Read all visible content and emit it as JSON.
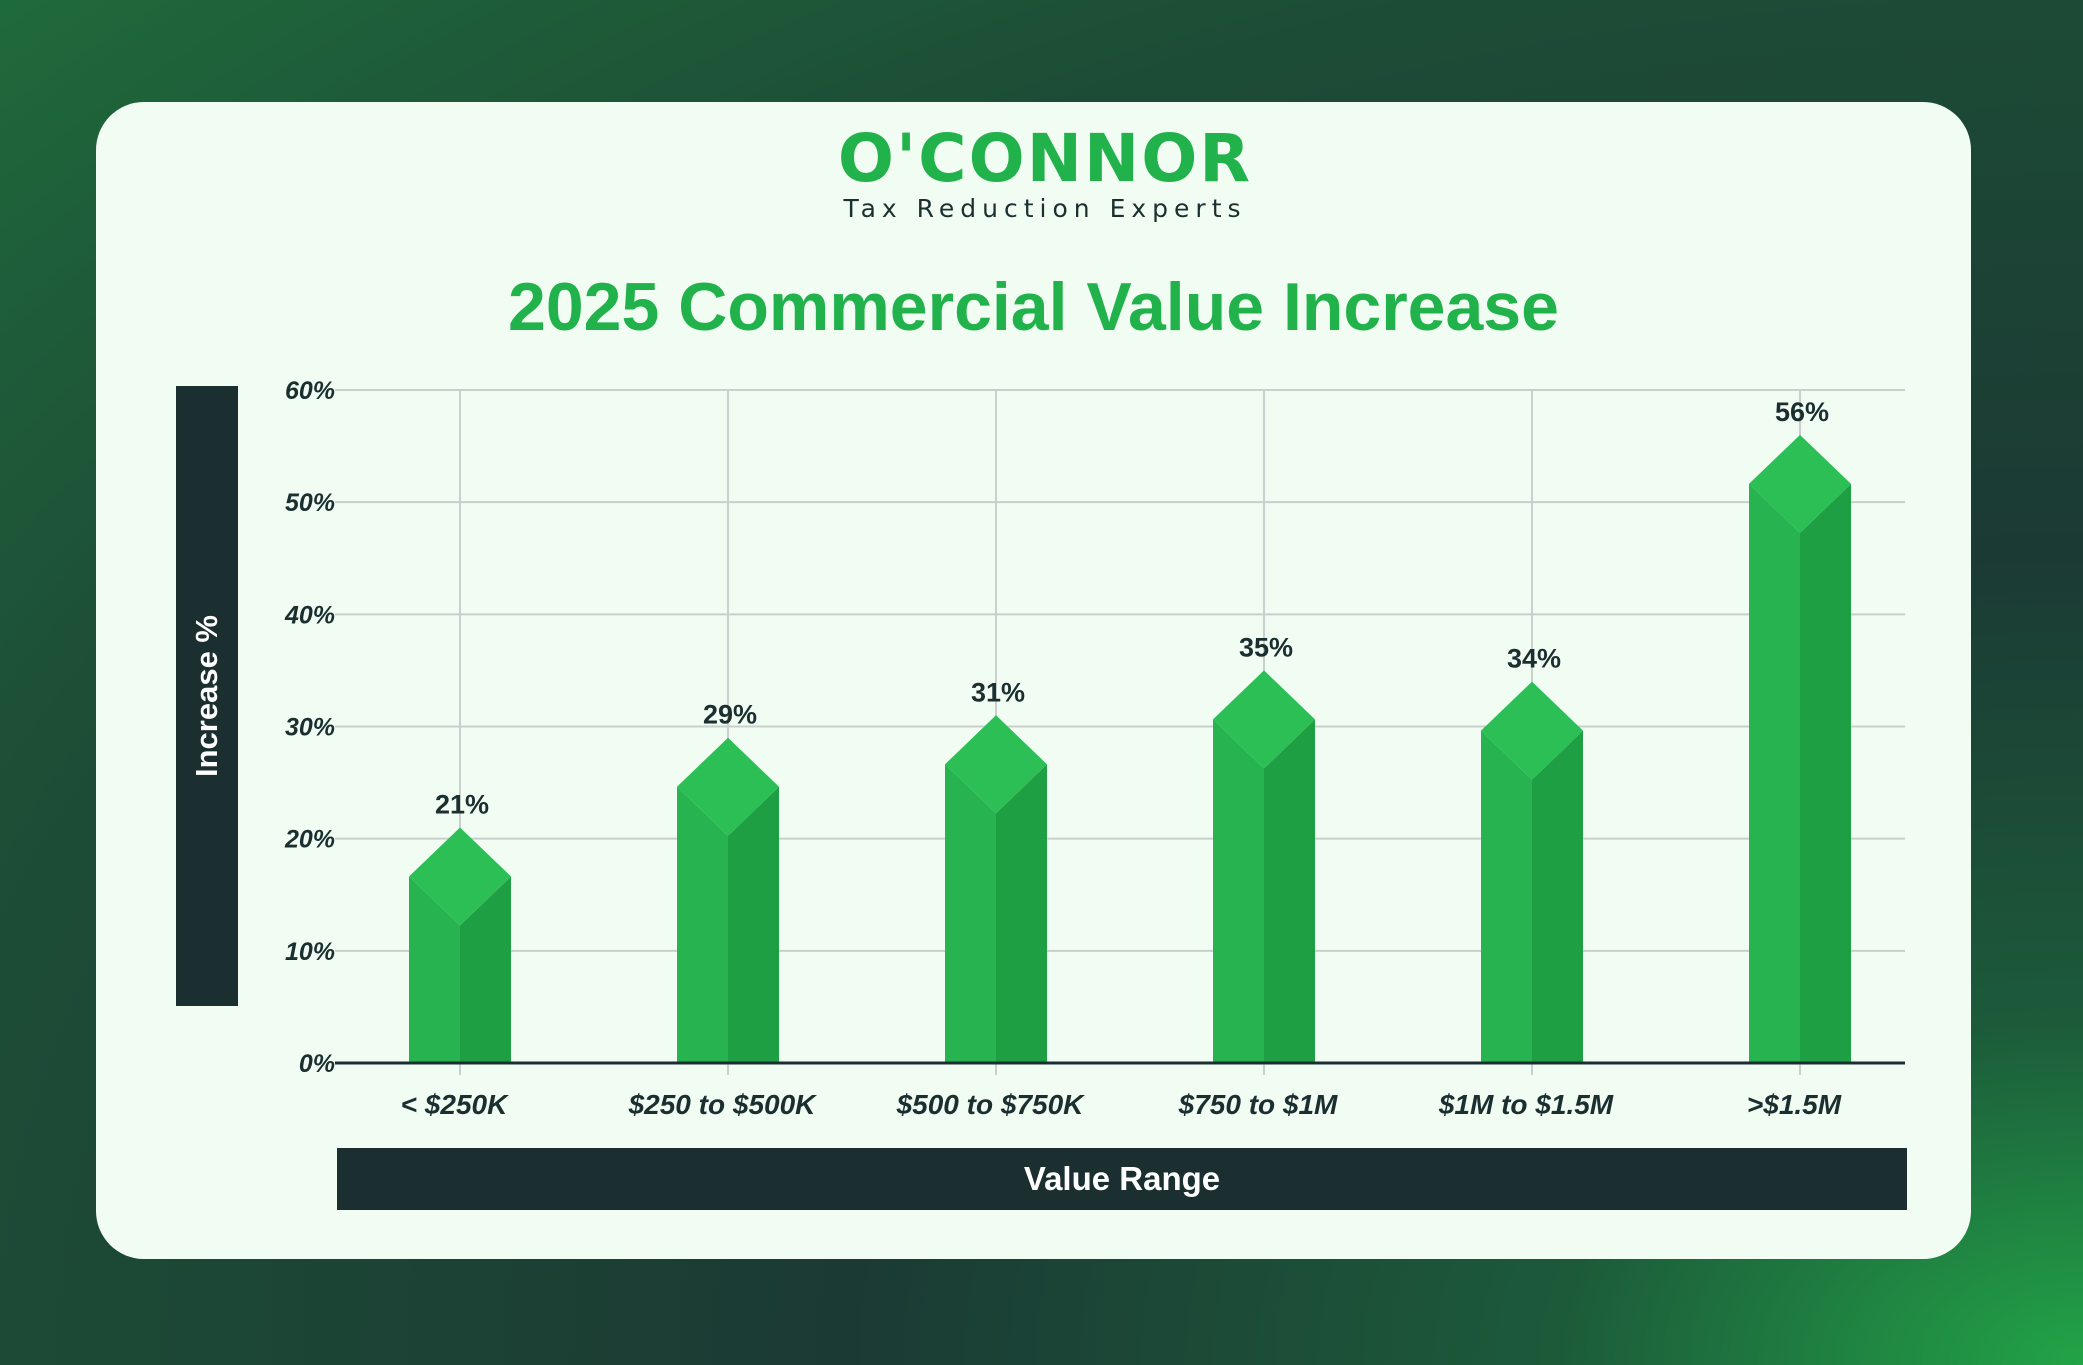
{
  "logo": {
    "word": "O'CONNOR",
    "tagline": "Tax Reduction Experts"
  },
  "colors": {
    "bar_front": "#27b34f",
    "bar_side": "#1f9f44",
    "bar_top": "#2bbf56",
    "dark": "#1b2f30",
    "brand": "#22b24c"
  },
  "chart_data": {
    "type": "bar",
    "title": "2025 Commercial Value Increase",
    "xlabel": "Value Range",
    "ylabel": "Increase %",
    "categories": [
      "< $250K",
      "$250 to $500K",
      "$500 to $750K",
      "$750 to $1M",
      "$1M to $1.5M",
      ">$1.5M"
    ],
    "values": [
      21,
      29,
      31,
      35,
      34,
      56
    ],
    "data_labels": [
      "21%",
      "29%",
      "31%",
      "35%",
      "34%",
      "56%"
    ],
    "ylim": [
      0,
      60
    ],
    "yticks": [
      "0%",
      "10%",
      "20%",
      "30%",
      "40%",
      "50%",
      "60%"
    ],
    "grid": true,
    "legend": "none"
  }
}
